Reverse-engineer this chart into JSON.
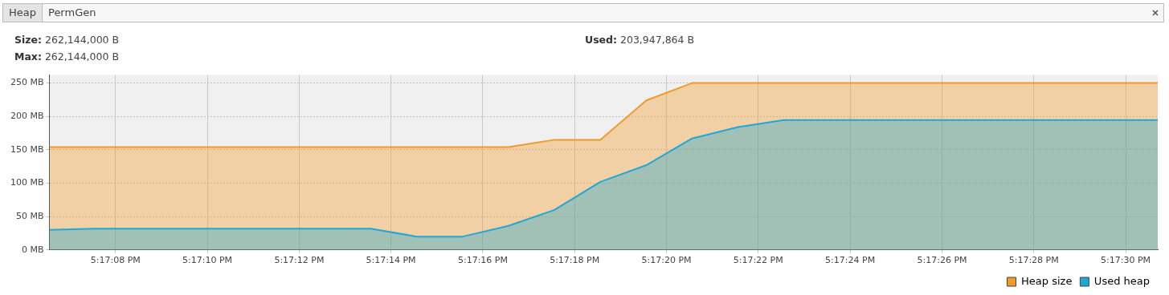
{
  "chart_data": {
    "type": "area",
    "annotations": [
      "Heap",
      "PermGen",
      "Size: 262,144,000 B",
      "Max: 262,144,000 B",
      "Used: 203,947,864 B"
    ],
    "x": [
      17.285156,
      17.285433,
      17.285711,
      17.285989,
      17.286267,
      17.286544,
      17.286822,
      17.2871,
      17.287378,
      17.287656,
      17.287933,
      17.288211,
      17.288489,
      17.288767,
      17.289044,
      17.289322,
      17.2896,
      17.289878,
      17.290156,
      17.290433,
      17.290711,
      17.290989,
      17.291267,
      17.291544,
      17.291822,
      17.291861
    ],
    "series": [
      {
        "name": "Heap size",
        "color": "#f09a28",
        "values": [
          154,
          154,
          154,
          154,
          154,
          154,
          154,
          154,
          154,
          154,
          154,
          165,
          165,
          224,
          250,
          250,
          250,
          250,
          250,
          250,
          250,
          250,
          250,
          250,
          250,
          250
        ]
      },
      {
        "name": "Used heap",
        "color": "#1fa8d6",
        "values": [
          30,
          32,
          32,
          32,
          32,
          32,
          32,
          32,
          20,
          20,
          36,
          60,
          102,
          127,
          167,
          184,
          194.5,
          194.5,
          194.5,
          194.5,
          194.5,
          194.5,
          194.5,
          194.5,
          194.5,
          194.5
        ]
      }
    ],
    "xlim": [
      17.285156,
      17.291861
    ],
    "xticks": [
      {
        "value": 17.285556,
        "label": "5:17:08 PM"
      },
      {
        "value": 17.286111,
        "label": "5:17:10 PM"
      },
      {
        "value": 17.286667,
        "label": "5:17:12 PM"
      },
      {
        "value": 17.287222,
        "label": "5:17:14 PM"
      },
      {
        "value": 17.287778,
        "label": "5:17:16 PM"
      },
      {
        "value": 17.288333,
        "label": "5:17:18 PM"
      },
      {
        "value": 17.288889,
        "label": "5:17:20 PM"
      },
      {
        "value": 17.289444,
        "label": "5:17:22 PM"
      },
      {
        "value": 17.29,
        "label": "5:17:24 PM"
      },
      {
        "value": 17.290556,
        "label": "5:17:26 PM"
      },
      {
        "value": 17.291111,
        "label": "5:17:28 PM"
      },
      {
        "value": 17.291667,
        "label": "5:17:30 PM"
      }
    ],
    "ylim": [
      0,
      262
    ],
    "yticks": [
      {
        "value": 0,
        "label": "0 MB"
      },
      {
        "value": 50,
        "label": "50 MB"
      },
      {
        "value": 100,
        "label": "100 MB"
      },
      {
        "value": 150,
        "label": "150 MB"
      },
      {
        "value": 200,
        "label": "200 MB"
      },
      {
        "value": 250,
        "label": "250 MB"
      }
    ],
    "grid": true,
    "legend": "bottom right",
    "marker": "none",
    "line_style": "solid"
  }
}
